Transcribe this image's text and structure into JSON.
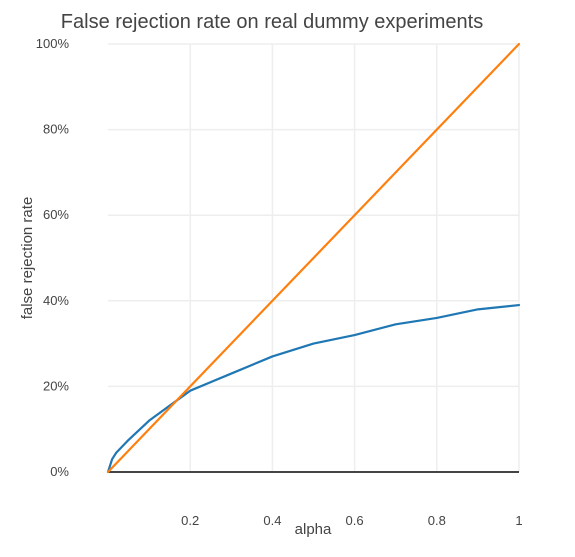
{
  "chart_data": {
    "type": "line",
    "title": "False rejection rate on real dummy experiments",
    "xlabel": "alpha",
    "ylabel": "false rejection rate",
    "xlim": [
      0,
      1
    ],
    "ylim": [
      0,
      100
    ],
    "x_ticks": [
      {
        "value": 0.2,
        "label": "0.2"
      },
      {
        "value": 0.4,
        "label": "0.4"
      },
      {
        "value": 0.6,
        "label": "0.6"
      },
      {
        "value": 0.8,
        "label": "0.8"
      },
      {
        "value": 1,
        "label": "1"
      }
    ],
    "y_ticks": [
      {
        "value": 0,
        "label": "0%"
      },
      {
        "value": 20,
        "label": "20%"
      },
      {
        "value": 40,
        "label": "40%"
      },
      {
        "value": 60,
        "label": "60%"
      },
      {
        "value": 80,
        "label": "80%"
      },
      {
        "value": 100,
        "label": "100%"
      }
    ],
    "grid": true,
    "legend": "none",
    "series": [
      {
        "color": "#1f77b4",
        "x": [
          0,
          0.01,
          0.02,
          0.05,
          0.1,
          0.2,
          0.3,
          0.4,
          0.5,
          0.6,
          0.7,
          0.8,
          0.9,
          1.0
        ],
        "y": [
          0,
          3,
          4.5,
          7.5,
          12,
          19,
          23,
          27,
          30,
          32,
          34.5,
          36,
          38,
          39
        ]
      },
      {
        "color": "#ff7f0e",
        "x": [
          0,
          1
        ],
        "y": [
          0,
          100
        ]
      }
    ]
  }
}
